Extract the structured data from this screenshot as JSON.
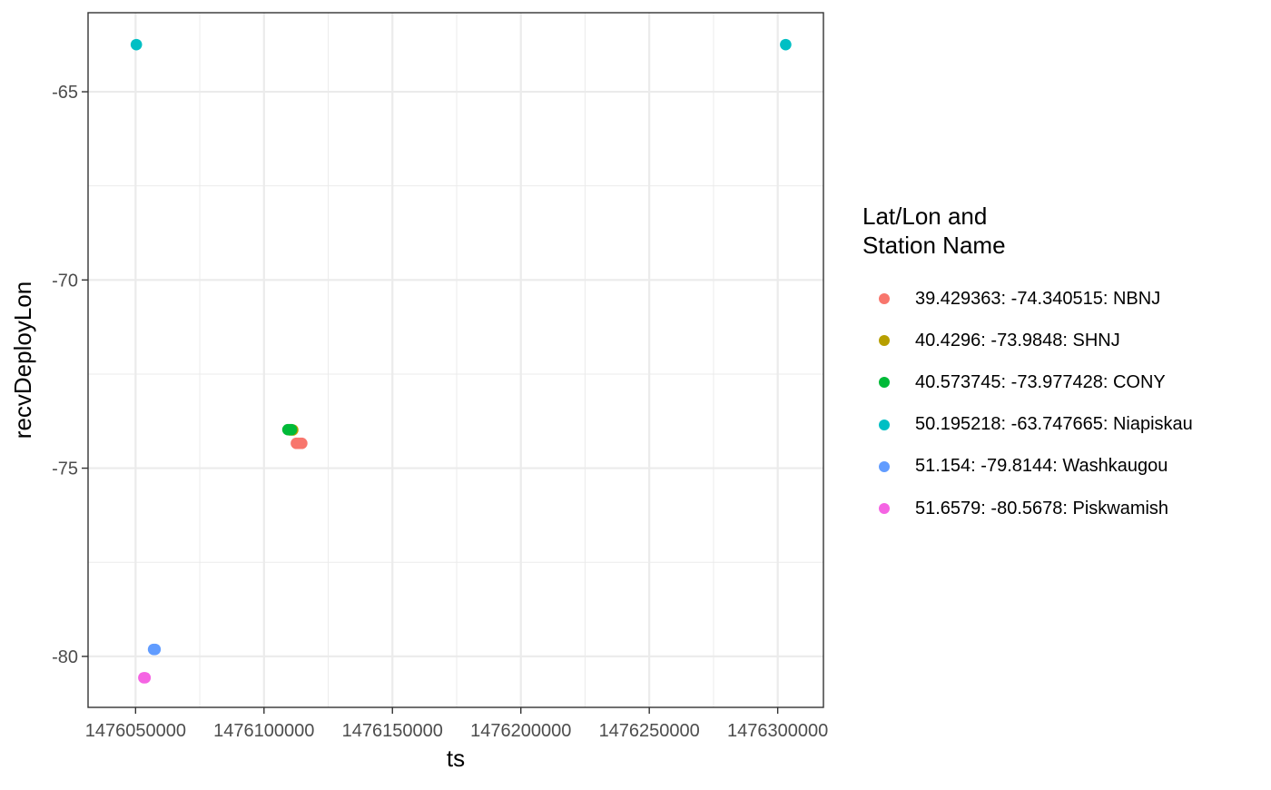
{
  "chart_data": {
    "type": "scatter",
    "xlabel": "ts",
    "ylabel": "recvDeployLon",
    "xlim": [
      1476031500,
      1476317800
    ],
    "ylim": [
      -81.355,
      -62.9
    ],
    "x_ticks": [
      1476050000,
      1476100000,
      1476150000,
      1476200000,
      1476250000,
      1476300000
    ],
    "x_tick_labels": [
      "1476050000",
      "1476100000",
      "1476150000",
      "1476200000",
      "1476250000",
      "1476300000"
    ],
    "y_ticks": [
      -65,
      -70,
      -75,
      -80
    ],
    "y_tick_labels": [
      "-65",
      "-70",
      "-75",
      "-80"
    ],
    "grid": true,
    "legend": {
      "title_lines": [
        "Lat/Lon and",
        "Station Name"
      ],
      "position": "right"
    },
    "series": [
      {
        "name": "39.429363: -74.340515: NBNJ",
        "color": "#F8766D",
        "x": [
          1476112600,
          1476113300,
          1476114000,
          1476114700
        ],
        "y": [
          -74.340515,
          -74.340515,
          -74.340515,
          -74.340515
        ]
      },
      {
        "name": "40.4296: -73.9848: SHNJ",
        "color": "#B79F00",
        "x": [
          1476110200,
          1476111200
        ],
        "y": [
          -73.9848,
          -73.9848
        ]
      },
      {
        "name": "40.573745: -73.977428: CONY",
        "color": "#00BA38",
        "x": [
          1476109300,
          1476110000,
          1476110700
        ],
        "y": [
          -73.977428,
          -73.977428,
          -73.977428
        ]
      },
      {
        "name": "50.195218: -63.747665: Niapiskau",
        "color": "#00BFC4",
        "x": [
          1476050300,
          1476303100
        ],
        "y": [
          -63.747665,
          -63.747665
        ]
      },
      {
        "name": "51.154: -79.8144: Washkaugou",
        "color": "#619CFF",
        "x": [
          1476057000,
          1476057600
        ],
        "y": [
          -79.8144,
          -79.8144
        ]
      },
      {
        "name": "51.6579: -80.5678: Piskwamish",
        "color": "#F564E3",
        "x": [
          1476053200,
          1476053700
        ],
        "y": [
          -80.5678,
          -80.5678
        ]
      }
    ]
  }
}
